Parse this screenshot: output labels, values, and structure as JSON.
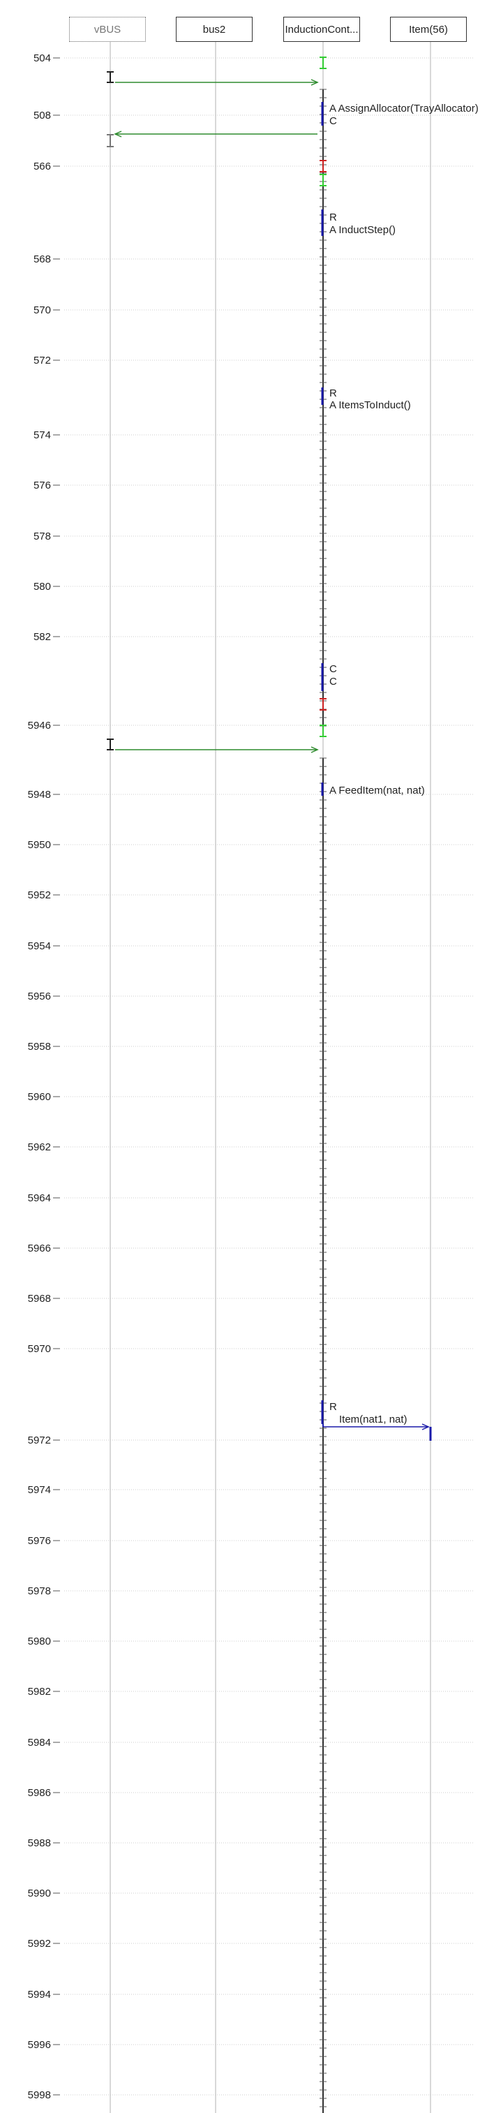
{
  "lifelines": [
    {
      "label": "vBUS",
      "style": "dashed"
    },
    {
      "label": "bus2",
      "style": "solid"
    },
    {
      "label": "InductionCont...",
      "style": "solid"
    },
    {
      "label": "Item(56)",
      "style": "solid"
    }
  ],
  "time_ticks": [
    "504",
    "508",
    "566",
    "568",
    "570",
    "572",
    "574",
    "576",
    "578",
    "580",
    "582",
    "5946",
    "5948",
    "5950",
    "5952",
    "5954",
    "5956",
    "5958",
    "5960",
    "5962",
    "5964",
    "5966",
    "5968",
    "5970",
    "5972",
    "5974",
    "5976",
    "5978",
    "5980",
    "5982",
    "5984",
    "5986",
    "5988",
    "5990",
    "5992",
    "5994",
    "5996",
    "5998"
  ],
  "annotations": [
    {
      "text": "A AssignAllocator(TrayAllocator)",
      "color": "#222222"
    },
    {
      "text": "C",
      "color": "#222222"
    },
    {
      "text": "R",
      "color": "#222222"
    },
    {
      "text": "A InductStep()",
      "color": "#222222"
    },
    {
      "text": "R",
      "color": "#222222"
    },
    {
      "text": "A ItemsToInduct()",
      "color": "#222222"
    },
    {
      "text": "C",
      "color": "#222222"
    },
    {
      "text": "C",
      "color": "#222222"
    },
    {
      "text": "A FeedItem(nat, nat)",
      "color": "#222222"
    },
    {
      "text": "R",
      "color": "#222222"
    },
    {
      "text": "Item(nat1, nat)",
      "color": "#222222"
    }
  ],
  "colors": {
    "message": "#2e8b2e",
    "green_mark": "#33cc33",
    "red_mark": "#cc2222",
    "blue_mark": "#1a1aaa",
    "grid": "#cccccc",
    "lifeline": "#d8d8d8"
  }
}
